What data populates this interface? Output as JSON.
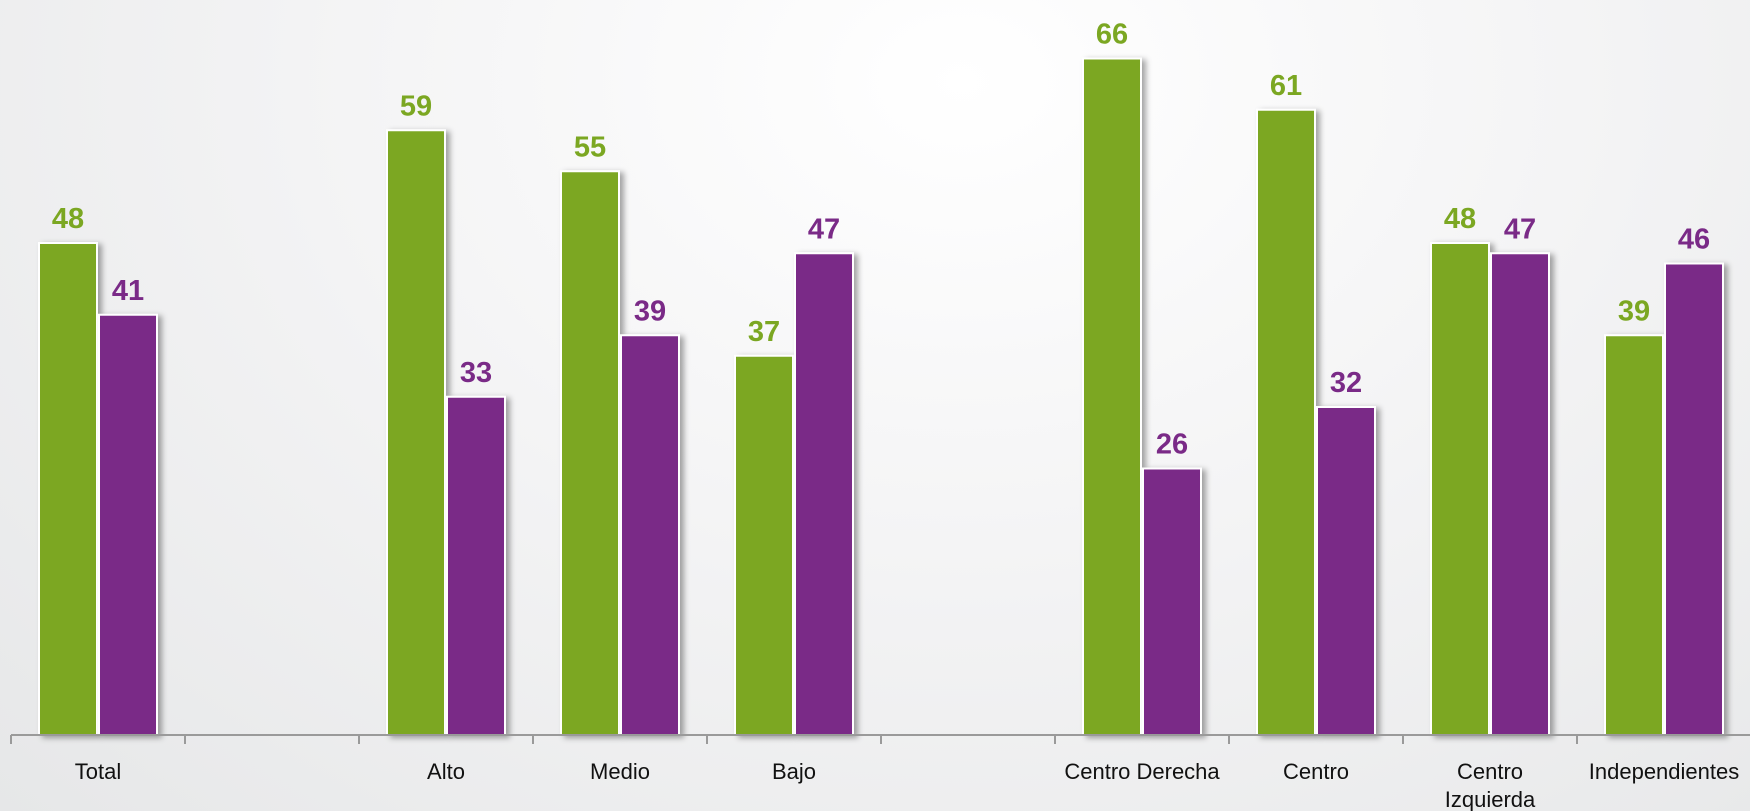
{
  "chart_data": {
    "type": "bar",
    "categories": [
      "Total",
      "",
      "Alto",
      "Medio",
      "Bajo",
      "",
      "Centro Derecha",
      "Centro",
      "Centro\nIzquierda",
      "Independientes"
    ],
    "series": [
      {
        "color": "#7BA722",
        "values": [
          48,
          null,
          59,
          55,
          37,
          null,
          66,
          61,
          48,
          39
        ]
      },
      {
        "color": "#7A2A87",
        "values": [
          41,
          null,
          33,
          39,
          47,
          null,
          26,
          32,
          47,
          46
        ]
      }
    ],
    "ylim": [
      0,
      71
    ],
    "grid": false,
    "legend": "none",
    "data_labels": true
  }
}
